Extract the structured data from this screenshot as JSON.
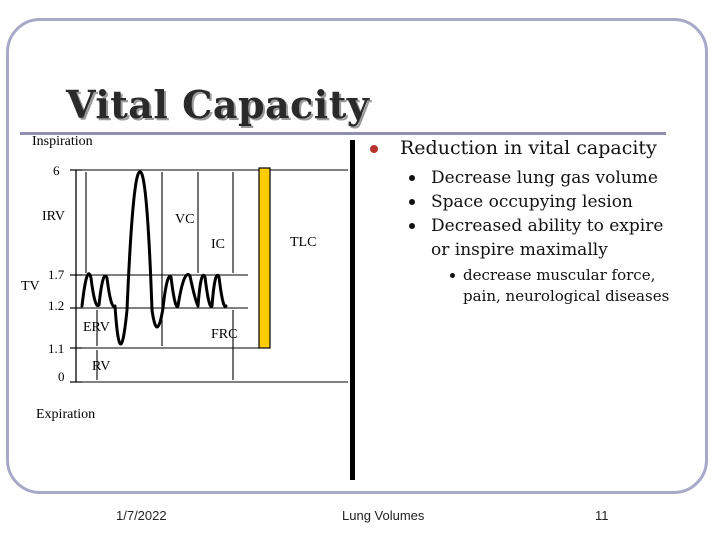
{
  "slide": {
    "title": "Vital Capacity",
    "footer": {
      "date": "1/7/2022",
      "center": "Lung Volumes",
      "page": "11"
    }
  },
  "diagram": {
    "labels": {
      "inspiration": "Inspiration",
      "expiration": "Expiration",
      "irv": "IRV",
      "vc": "VC",
      "ic": "IC",
      "tlc": "TLC",
      "tv": "TV",
      "erv": "ERV",
      "frc": "FRC",
      "rv": "RV"
    },
    "axis_ticks": [
      "6",
      "1.7",
      "1.2",
      "1.1",
      "0"
    ],
    "colors": {
      "tlc_bar_fill": "#ffcc00",
      "trace": "#000000"
    }
  },
  "bullets": {
    "main": "Reduction in vital capacity",
    "sub": [
      "Decrease lung gas volume",
      "Space occupying lesion",
      "Decreased ability to expire or inspire maximally"
    ],
    "subsub": "decrease muscular force, pain, neurological diseases"
  },
  "colors": {
    "frame": "#a8a9c8",
    "rule": "#8f90ad",
    "main_bullet": "#b8332e"
  }
}
